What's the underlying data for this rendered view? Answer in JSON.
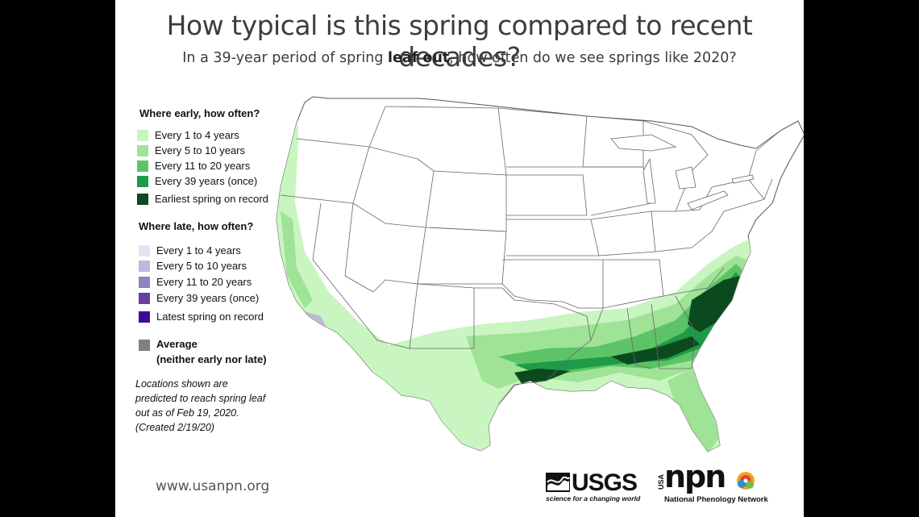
{
  "title": "How typical is this spring compared to recent decades?",
  "subtitle": {
    "before": "In a 39-year period of spring ",
    "bold": "leaf out",
    "after": ", how often do we see springs like 2020?"
  },
  "legend": {
    "early_heading": "Where early, how often?",
    "early_items": [
      {
        "label": "Every 1 to 4 years",
        "color": "#c9f5c0"
      },
      {
        "label": "Every 5 to 10 years",
        "color": "#9ee396"
      },
      {
        "label": "Every 11 to 20 years",
        "color": "#5cc466"
      },
      {
        "label": "Every 39 years (once)",
        "color": "#1f9a48"
      },
      {
        "label": "Earliest spring on record",
        "color": "#0b4a1f"
      }
    ],
    "late_heading": "Where late, how often?",
    "late_items": [
      {
        "label": "Every 1 to 4 years",
        "color": "#e6e3f1"
      },
      {
        "label": "Every 5 to 10 years",
        "color": "#bdb9da"
      },
      {
        "label": "Every 11 to 20 years",
        "color": "#8e84c0"
      },
      {
        "label": "Every 39 years (once)",
        "color": "#6a3e9e"
      },
      {
        "label": "Latest spring on record",
        "color": "#3f0a9a"
      }
    ],
    "average": {
      "line1": "Average",
      "line2": "(neither early nor late)",
      "color": "#808080"
    }
  },
  "note": {
    "line1": "Locations shown are",
    "line2": "predicted to reach spring leaf",
    "line3": "out as of  Feb 19, 2020.",
    "line4": "(Created 2/19/20)"
  },
  "footer": {
    "url": "www.usanpn.org",
    "usgs_text": "USGS",
    "usgs_tagline": "science for a changing world",
    "npn_text": "npn",
    "npn_usa": "USA",
    "npn_full": "National Phenology Network"
  },
  "map_colors": {
    "light": "#c9f5c0",
    "mid": "#9ee396",
    "green": "#5cc466",
    "strong": "#1f9a48",
    "darkest": "#0b4a1f",
    "late_light": "#e6e3f1",
    "late_mid": "#bdb9da",
    "boundary": "#666666"
  }
}
